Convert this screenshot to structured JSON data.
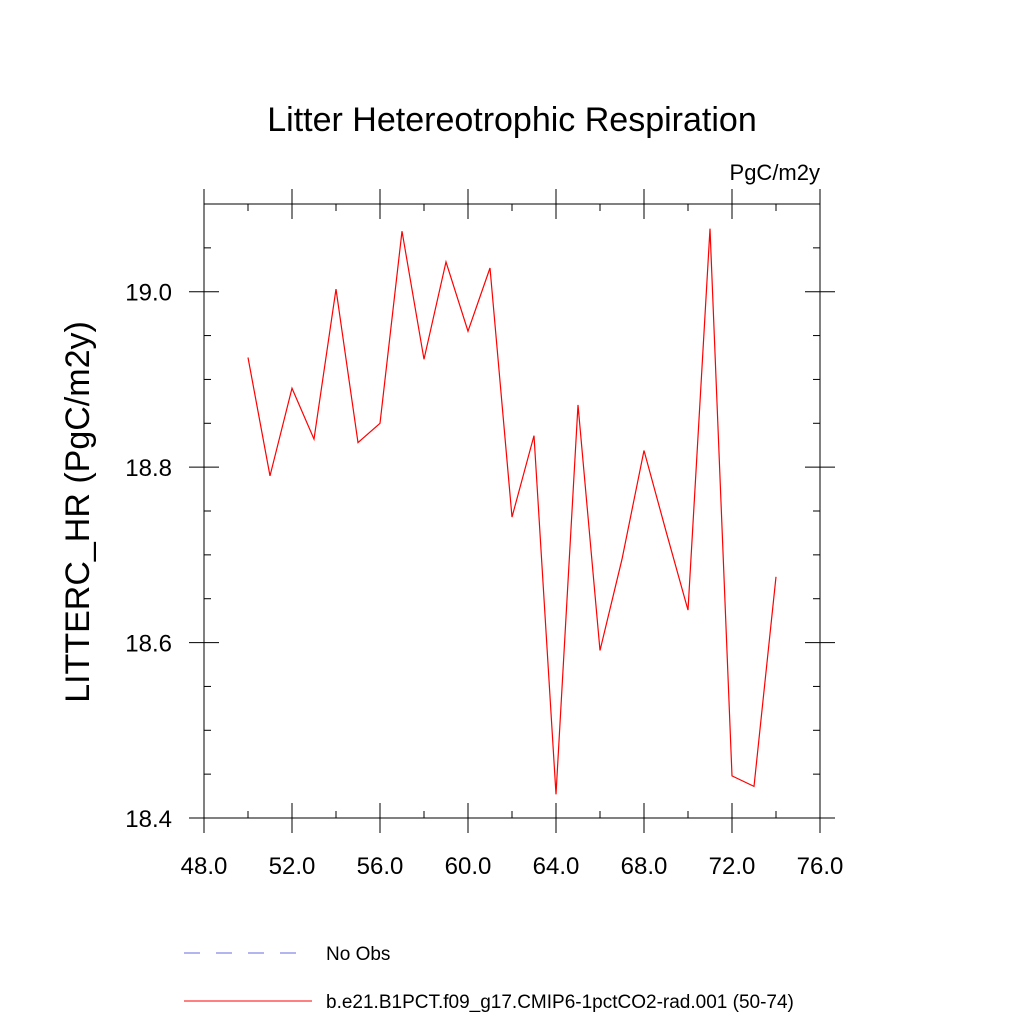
{
  "chart_data": {
    "type": "line",
    "title": "Litter Hetereotrophic Respiration",
    "units_label": "PgC/m2y",
    "ylabel": "LITTERC_HR  (PgC/m2y)",
    "xlabel": "",
    "xlim": [
      48,
      76
    ],
    "ylim": [
      18.4,
      19.1
    ],
    "x_ticks": [
      48,
      52,
      56,
      60,
      64,
      68,
      72,
      76
    ],
    "x_tick_labels": [
      "48.0",
      "52.0",
      "56.0",
      "60.0",
      "64.0",
      "68.0",
      "72.0",
      "76.0"
    ],
    "x_minor_step": 2,
    "y_ticks": [
      18.4,
      18.6,
      18.8,
      19.0
    ],
    "y_tick_labels": [
      "18.4",
      "18.6",
      "18.8",
      "19.0"
    ],
    "y_minor_step": 0.05,
    "grid": false,
    "legend_position": "bottom",
    "series": [
      {
        "name": "b.e21.B1PCT.f09_g17.CMIP6-1pctCO2-rad.001 (50-74)",
        "color": "#ff0000",
        "style": "solid",
        "x": [
          50,
          51,
          52,
          53,
          54,
          55,
          56,
          57,
          58,
          59,
          60,
          61,
          62,
          63,
          64,
          65,
          66,
          67,
          68,
          69,
          70,
          71,
          72,
          73,
          74
        ],
        "y": [
          18.925,
          18.79,
          18.89,
          18.832,
          19.003,
          18.828,
          18.85,
          19.069,
          18.923,
          19.034,
          18.955,
          19.027,
          18.743,
          18.836,
          18.427,
          18.871,
          18.591,
          18.695,
          18.819,
          18.727,
          18.637,
          19.072,
          18.448,
          18.436,
          18.675
        ]
      }
    ],
    "legend": [
      {
        "label": "No Obs",
        "color": "#6a6adf",
        "style": "dashed"
      },
      {
        "label": "b.e21.B1PCT.f09_g17.CMIP6-1pctCO2-rad.001 (50-74)",
        "color": "#ff0000",
        "style": "solid"
      }
    ]
  }
}
